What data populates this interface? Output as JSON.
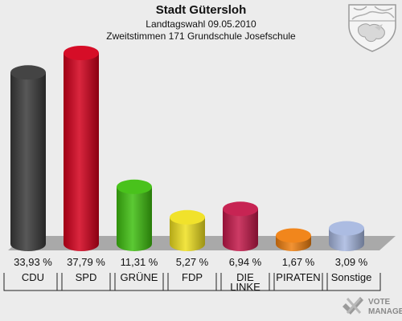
{
  "chart_data": {
    "type": "bar",
    "title": "Stadt Gütersloh",
    "subtitle": "Landtagswahl 09.05.2010",
    "subtitle2": "Zweitstimmen 171 Grundschule Josefschule",
    "categories": [
      {
        "lines": [
          "CDU"
        ]
      },
      {
        "lines": [
          "SPD"
        ]
      },
      {
        "lines": [
          "GRÜNE"
        ]
      },
      {
        "lines": [
          "FDP"
        ]
      },
      {
        "lines": [
          "DIE",
          "LINKE"
        ]
      },
      {
        "lines": [
          "PIRATEN"
        ]
      },
      {
        "lines": [
          "Sonstige"
        ]
      }
    ],
    "values": [
      33.93,
      37.79,
      11.31,
      5.27,
      6.94,
      1.67,
      3.09
    ],
    "value_labels": [
      "33,93 %",
      "37,79 %",
      "11,31 %",
      "5,27 %",
      "6,94 %",
      "1,67 %",
      "3,09 %"
    ],
    "colors": [
      "#3a3a3a",
      "#d4001c",
      "#3fbf10",
      "#f0e020",
      "#c4184a",
      "#f08010",
      "#a8b8e0"
    ],
    "ylim": [
      0,
      37.79
    ]
  },
  "branding": {
    "line1": "VOTE",
    "line2": "MANAGER"
  }
}
